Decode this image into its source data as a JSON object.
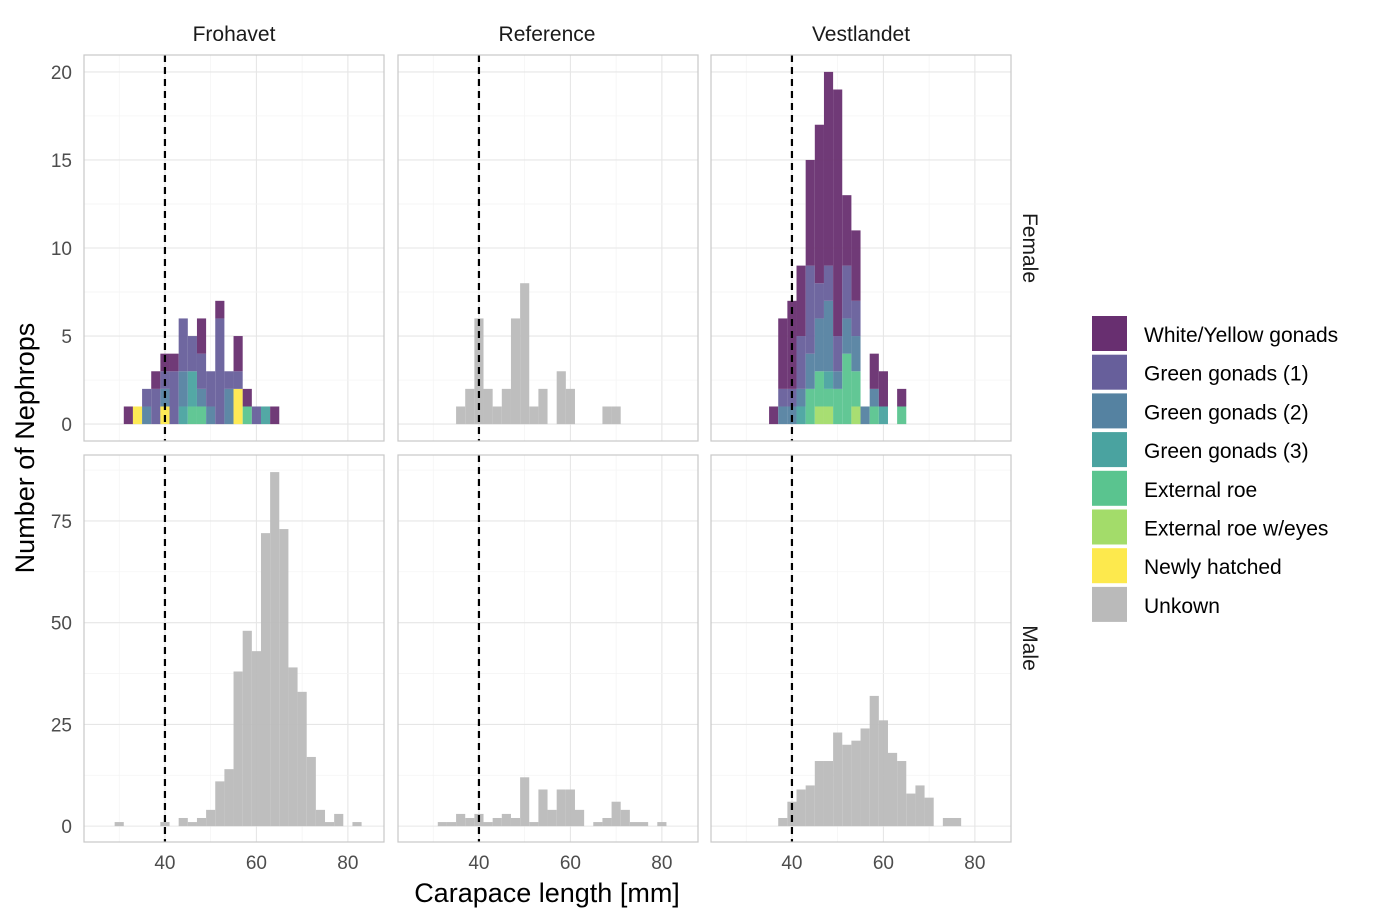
{
  "chart_data": {
    "type": "bar",
    "subtype": "stacked histogram, faceted",
    "xlabel": "Carapace length [mm]",
    "ylabel": "Number of Nephrops",
    "columns": [
      "Frohavet",
      "Reference",
      "Vestlandet"
    ],
    "rows": [
      "Female",
      "Male"
    ],
    "xlim": [
      22.3,
      87.9
    ],
    "x_ticks": [
      40,
      60,
      80
    ],
    "ylim_by_row": {
      "Female": [
        -0.96,
        20.96
      ],
      "Male": [
        -3.9,
        91.2
      ]
    },
    "y_ticks_by_row": {
      "Female": [
        0,
        5,
        10,
        15,
        20
      ],
      "Male": [
        0,
        25,
        50,
        75
      ]
    },
    "bin_width": 2,
    "reference_line": {
      "x": 40,
      "style": "dashed",
      "color": "#000000"
    },
    "grid": true,
    "legend_position": "right",
    "legend": [
      {
        "name": "White/Yellow gonads",
        "color": "#682f70"
      },
      {
        "name": "Green gonads (1)",
        "color": "#675f9b"
      },
      {
        "name": "Green gonads (2)",
        "color": "#5582a1"
      },
      {
        "name": "Green gonads (3)",
        "color": "#4aa3a0"
      },
      {
        "name": "External roe",
        "color": "#5ac48f"
      },
      {
        "name": "External roe w/eyes",
        "color": "#a3dc6a"
      },
      {
        "name": "Newly hatched",
        "color": "#fde94d"
      },
      {
        "name": "Unkown",
        "color": "#bababa"
      }
    ],
    "panels": [
      {
        "column": "Frohavet",
        "row": "Female",
        "x": [
          32,
          34,
          36,
          38,
          40,
          42,
          44,
          46,
          48,
          50,
          52,
          54,
          56,
          58,
          60,
          62,
          64
        ],
        "series": [
          {
            "name": "White/Yellow gonads",
            "values": [
              1,
              0,
              0,
              1,
              1,
              1,
              0,
              0,
              2,
              0,
              1,
              0,
              2,
              1,
              0,
              0,
              1
            ]
          },
          {
            "name": "Green gonads (1)",
            "values": [
              0,
              0,
              1,
              2,
              1,
              3,
              3,
              2,
              2,
              2,
              6,
              1,
              1,
              0,
              1,
              0,
              0
            ]
          },
          {
            "name": "Green gonads (2)",
            "values": [
              0,
              0,
              1,
              0,
              1,
              0,
              2,
              0,
              1,
              1,
              0,
              2,
              0,
              0,
              0,
              0,
              0
            ]
          },
          {
            "name": "Green gonads (3)",
            "values": [
              0,
              0,
              0,
              0,
              0,
              0,
              1,
              2,
              0,
              0,
              0,
              0,
              0,
              0,
              0,
              1,
              0
            ]
          },
          {
            "name": "External roe",
            "values": [
              0,
              0,
              0,
              0,
              0,
              0,
              0,
              1,
              1,
              0,
              0,
              0,
              0,
              1,
              0,
              0,
              0
            ]
          },
          {
            "name": "External roe w/eyes",
            "values": [
              0,
              0,
              0,
              0,
              0,
              0,
              0,
              0,
              0,
              0,
              0,
              0,
              0,
              0,
              0,
              0,
              0
            ]
          },
          {
            "name": "Newly hatched",
            "values": [
              0,
              1,
              0,
              0,
              1,
              0,
              0,
              0,
              0,
              0,
              0,
              0,
              2,
              0,
              0,
              0,
              0
            ]
          }
        ]
      },
      {
        "column": "Reference",
        "row": "Female",
        "x": [
          36,
          38,
          40,
          42,
          44,
          46,
          48,
          50,
          52,
          54,
          56,
          58,
          60,
          62,
          64,
          66,
          68,
          70
        ],
        "series": [
          {
            "name": "Unkown",
            "values": [
              1,
              2,
              6,
              2,
              1,
              2,
              6,
              8,
              1,
              2,
              0,
              3,
              2,
              0,
              0,
              0,
              1,
              1
            ]
          }
        ]
      },
      {
        "column": "Vestlandet",
        "row": "Female",
        "x": [
          36,
          38,
          40,
          42,
          44,
          46,
          48,
          50,
          52,
          54,
          56,
          58,
          60,
          62,
          64
        ],
        "series": [
          {
            "name": "White/Yellow gonads",
            "values": [
              1,
              4,
              5,
              4,
              6,
              9,
              11,
              14,
              4,
              4,
              0,
              2,
              2,
              0,
              1
            ]
          },
          {
            "name": "Green gonads (1)",
            "values": [
              0,
              1,
              1,
              3,
              5,
              2,
              2,
              2,
              3,
              2,
              0,
              0,
              0,
              0,
              0
            ]
          },
          {
            "name": "Green gonads (2)",
            "values": [
              0,
              1,
              1,
              1,
              2,
              3,
              4,
              1,
              2,
              2,
              1,
              1,
              0,
              0,
              0
            ]
          },
          {
            "name": "Green gonads (3)",
            "values": [
              0,
              0,
              0,
              1,
              0,
              0,
              1,
              0,
              0,
              0,
              0,
              0,
              1,
              0,
              0
            ]
          },
          {
            "name": "External roe",
            "values": [
              0,
              0,
              0,
              0,
              2,
              2,
              1,
              2,
              4,
              2,
              0,
              1,
              0,
              0,
              1
            ]
          },
          {
            "name": "External roe w/eyes",
            "values": [
              0,
              0,
              0,
              0,
              0,
              1,
              1,
              0,
              0,
              1,
              0,
              0,
              0,
              0,
              0
            ]
          },
          {
            "name": "Newly hatched",
            "values": [
              0,
              0,
              0,
              0,
              0,
              0,
              0,
              0,
              0,
              0,
              0,
              0,
              0,
              0,
              0
            ]
          }
        ]
      },
      {
        "column": "Frohavet",
        "row": "Male",
        "x": [
          30,
          32,
          34,
          36,
          38,
          40,
          42,
          44,
          46,
          48,
          50,
          52,
          54,
          56,
          58,
          60,
          62,
          64,
          66,
          68,
          70,
          72,
          74,
          76,
          78,
          80,
          82
        ],
        "series": [
          {
            "name": "Unkown",
            "values": [
              1,
              0,
              0,
              0,
              0,
              1,
              0,
              2,
              1,
              2,
              4,
              11,
              14,
              38,
              48,
              43,
              72,
              87,
              73,
              39,
              33,
              17,
              4,
              1,
              3,
              0,
              1
            ]
          }
        ]
      },
      {
        "column": "Reference",
        "row": "Male",
        "x": [
          32,
          34,
          36,
          38,
          40,
          42,
          44,
          46,
          48,
          50,
          52,
          54,
          56,
          58,
          60,
          62,
          64,
          66,
          68,
          70,
          72,
          74,
          76,
          78,
          80
        ],
        "series": [
          {
            "name": "Unkown",
            "values": [
              1,
              1,
              3,
              2,
              3,
              1,
              2,
              3,
              2,
              12,
              1,
              9,
              4,
              9,
              9,
              4,
              0,
              1,
              2,
              6,
              4,
              1,
              1,
              0,
              1
            ]
          }
        ]
      },
      {
        "column": "Vestlandet",
        "row": "Male",
        "x": [
          38,
          40,
          42,
          44,
          46,
          48,
          50,
          52,
          54,
          56,
          58,
          60,
          62,
          64,
          66,
          68,
          70,
          72,
          74,
          76
        ],
        "series": [
          {
            "name": "Unkown",
            "values": [
              2,
              6,
              9,
              10,
              16,
              16,
              23,
              20,
              21,
              24,
              32,
              26,
              18,
              16,
              8,
              10,
              7,
              0,
              2,
              2
            ]
          }
        ]
      }
    ]
  }
}
